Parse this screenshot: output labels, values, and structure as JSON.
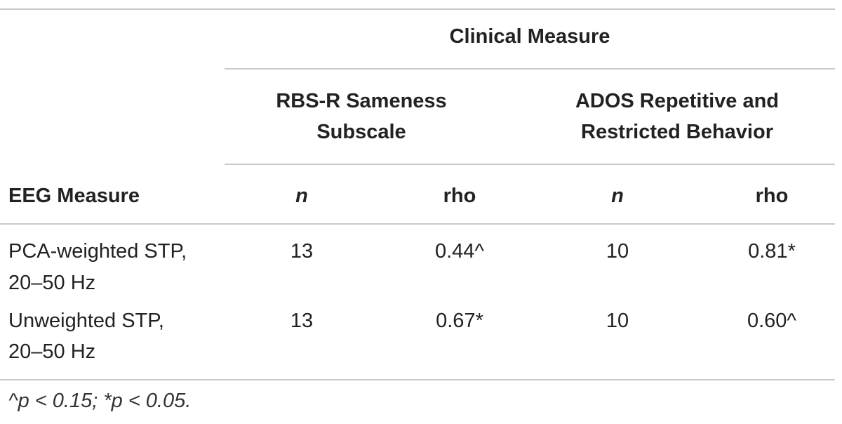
{
  "table": {
    "clinical_header": "Clinical Measure",
    "groups": [
      {
        "line1": "RBS-R Sameness",
        "line2": "Subscale"
      },
      {
        "line1": "ADOS Repetitive and",
        "line2": "Restricted Behavior"
      }
    ],
    "row_header": "EEG Measure",
    "sub_headers": [
      "n",
      "rho",
      "n",
      "rho"
    ],
    "rows": [
      {
        "label_line1": "PCA-weighted STP,",
        "label_line2": "20–50 Hz",
        "values": [
          "13",
          "0.44^",
          "10",
          "0.81*"
        ]
      },
      {
        "label_line1": "Unweighted STP,",
        "label_line2": "20–50 Hz",
        "values": [
          "13",
          "0.67*",
          "10",
          "0.60^"
        ]
      }
    ],
    "footnote": "^p < 0.15; *p < 0.05."
  }
}
